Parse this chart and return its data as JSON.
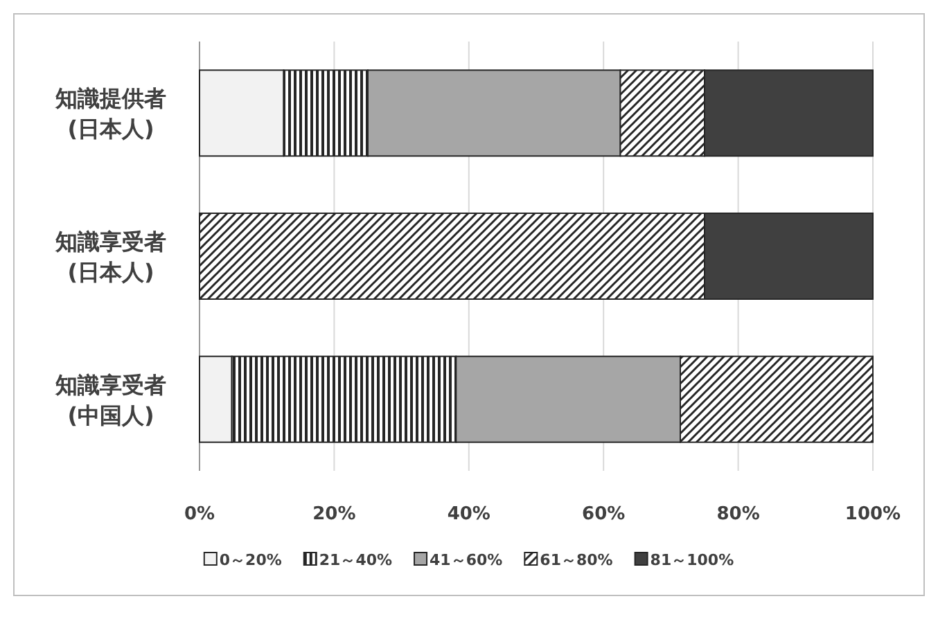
{
  "chart_data": {
    "type": "bar",
    "orientation": "horizontal",
    "stacked": true,
    "categories": [
      "知識提供者\n(日本人)",
      "知識享受者\n(日本人)",
      "知識享受者\n(中国人)"
    ],
    "series": [
      {
        "name": "0～20%",
        "color": "#f2f2f2",
        "values": [
          12.5,
          0,
          4.8
        ]
      },
      {
        "name": "21～40%",
        "color": "#262626",
        "values": [
          12.5,
          0,
          33.3
        ]
      },
      {
        "name": "41～60%",
        "color": "#a6a6a6",
        "values": [
          37.5,
          0,
          33.3
        ]
      },
      {
        "name": "61～80%",
        "color": "#262626",
        "values": [
          12.5,
          75,
          28.6
        ]
      },
      {
        "name": "81～100%",
        "color": "#404040",
        "values": [
          25,
          25,
          0
        ]
      }
    ],
    "xlim": [
      0,
      100
    ],
    "xticks": [
      {
        "value": 0,
        "label": "0%"
      },
      {
        "value": 20,
        "label": "20%"
      },
      {
        "value": 40,
        "label": "40%"
      },
      {
        "value": 60,
        "label": "60%"
      },
      {
        "value": 80,
        "label": "80%"
      },
      {
        "value": 100,
        "label": "100%"
      }
    ],
    "grid": "x",
    "legend": "bottom"
  }
}
